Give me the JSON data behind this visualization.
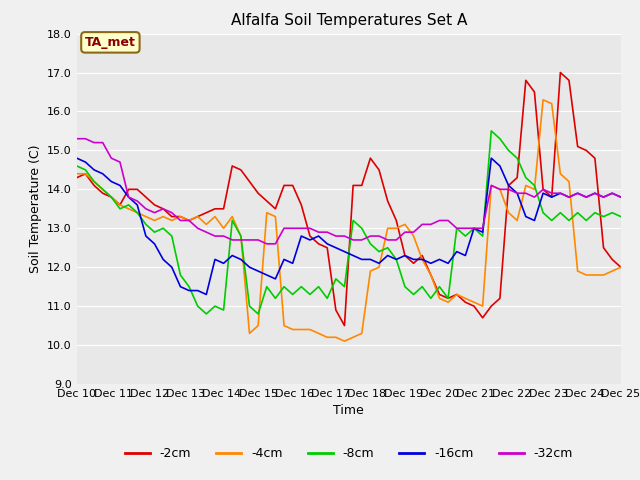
{
  "title": "Alfalfa Soil Temperatures Set A",
  "xlabel": "Time",
  "ylabel": "Soil Temperature (C)",
  "ylim": [
    9.0,
    18.0
  ],
  "yticks": [
    9.0,
    10.0,
    11.0,
    12.0,
    13.0,
    14.0,
    15.0,
    16.0,
    17.0,
    18.0
  ],
  "x_labels": [
    "Dec 10",
    "Dec 11",
    "Dec 12",
    "Dec 13",
    "Dec 14",
    "Dec 15",
    "Dec 16",
    "Dec 17",
    "Dec 18",
    "Dec 19",
    "Dec 20",
    "Dec 21",
    "Dec 22",
    "Dec 23",
    "Dec 24",
    "Dec 25"
  ],
  "colors": {
    "-2cm": "#dd0000",
    "-4cm": "#ff8800",
    "-8cm": "#00cc00",
    "-16cm": "#0000dd",
    "-32cm": "#cc00cc"
  },
  "series": {
    "-2cm": [
      14.3,
      14.4,
      14.1,
      13.9,
      13.8,
      13.6,
      14.0,
      14.0,
      13.8,
      13.6,
      13.5,
      13.3,
      13.3,
      13.2,
      13.3,
      13.4,
      13.5,
      13.5,
      14.6,
      14.5,
      14.2,
      13.9,
      13.7,
      13.5,
      14.1,
      14.1,
      13.6,
      12.8,
      12.6,
      12.5,
      10.9,
      10.5,
      14.1,
      14.1,
      14.8,
      14.5,
      13.7,
      13.2,
      12.3,
      12.1,
      12.3,
      11.8,
      11.3,
      11.2,
      11.3,
      11.1,
      11.0,
      10.7,
      11.0,
      11.2,
      14.1,
      14.3,
      16.8,
      16.5,
      14.0,
      13.8,
      17.0,
      16.8,
      15.1,
      15.0,
      14.8,
      12.5,
      12.2,
      12.0
    ],
    "-4cm": [
      14.4,
      14.4,
      14.2,
      14.0,
      13.8,
      13.6,
      13.5,
      13.4,
      13.3,
      13.2,
      13.3,
      13.2,
      13.3,
      13.2,
      13.3,
      13.1,
      13.3,
      13.0,
      13.3,
      12.8,
      10.3,
      10.5,
      13.4,
      13.3,
      10.5,
      10.4,
      10.4,
      10.4,
      10.3,
      10.2,
      10.2,
      10.1,
      10.2,
      10.3,
      11.9,
      12.0,
      13.0,
      13.0,
      13.1,
      12.8,
      12.2,
      11.8,
      11.2,
      11.1,
      11.3,
      11.2,
      11.1,
      11.0,
      14.1,
      14.0,
      13.4,
      13.2,
      14.1,
      14.0,
      16.3,
      16.2,
      14.4,
      14.2,
      11.9,
      11.8,
      11.8,
      11.8,
      11.9,
      12.0
    ],
    "-8cm": [
      14.6,
      14.5,
      14.2,
      14.0,
      13.8,
      13.5,
      13.6,
      13.4,
      13.1,
      12.9,
      13.0,
      12.8,
      11.8,
      11.5,
      11.0,
      10.8,
      11.0,
      10.9,
      13.2,
      12.8,
      11.0,
      10.8,
      11.5,
      11.2,
      11.5,
      11.3,
      11.5,
      11.3,
      11.5,
      11.2,
      11.7,
      11.5,
      13.2,
      13.0,
      12.6,
      12.4,
      12.5,
      12.2,
      11.5,
      11.3,
      11.5,
      11.2,
      11.5,
      11.2,
      13.0,
      12.8,
      13.0,
      12.8,
      15.5,
      15.3,
      15.0,
      14.8,
      14.3,
      14.1,
      13.4,
      13.2,
      13.4,
      13.2,
      13.4,
      13.2,
      13.4,
      13.3,
      13.4,
      13.3
    ],
    "-16cm": [
      14.8,
      14.7,
      14.5,
      14.4,
      14.2,
      14.1,
      13.8,
      13.6,
      12.8,
      12.6,
      12.2,
      12.0,
      11.5,
      11.4,
      11.4,
      11.3,
      12.2,
      12.1,
      12.3,
      12.2,
      12.0,
      11.9,
      11.8,
      11.7,
      12.2,
      12.1,
      12.8,
      12.7,
      12.8,
      12.6,
      12.5,
      12.4,
      12.3,
      12.2,
      12.2,
      12.1,
      12.3,
      12.2,
      12.3,
      12.2,
      12.2,
      12.1,
      12.2,
      12.1,
      12.4,
      12.3,
      13.0,
      12.9,
      14.8,
      14.6,
      14.1,
      13.9,
      13.3,
      13.2,
      13.9,
      13.8,
      13.9,
      13.8,
      13.9,
      13.8,
      13.9,
      13.8,
      13.9,
      13.8
    ],
    "-32cm": [
      15.3,
      15.3,
      15.2,
      15.2,
      14.8,
      14.7,
      13.8,
      13.7,
      13.5,
      13.4,
      13.5,
      13.4,
      13.2,
      13.2,
      13.0,
      12.9,
      12.8,
      12.8,
      12.7,
      12.7,
      12.7,
      12.7,
      12.6,
      12.6,
      13.0,
      13.0,
      13.0,
      13.0,
      12.9,
      12.9,
      12.8,
      12.8,
      12.7,
      12.7,
      12.8,
      12.8,
      12.7,
      12.7,
      12.9,
      12.9,
      13.1,
      13.1,
      13.2,
      13.2,
      13.0,
      13.0,
      13.0,
      13.0,
      14.1,
      14.0,
      14.0,
      13.9,
      13.9,
      13.8,
      14.0,
      13.9,
      13.9,
      13.8,
      13.9,
      13.8,
      13.9,
      13.8,
      13.9,
      13.8
    ]
  },
  "annotation_text": "TA_met",
  "fig_bg_color": "#f0f0f0",
  "plot_bg_color": "#e8e8e8",
  "grid_color": "#ffffff",
  "title_fontsize": 11,
  "label_fontsize": 9,
  "tick_fontsize": 8
}
